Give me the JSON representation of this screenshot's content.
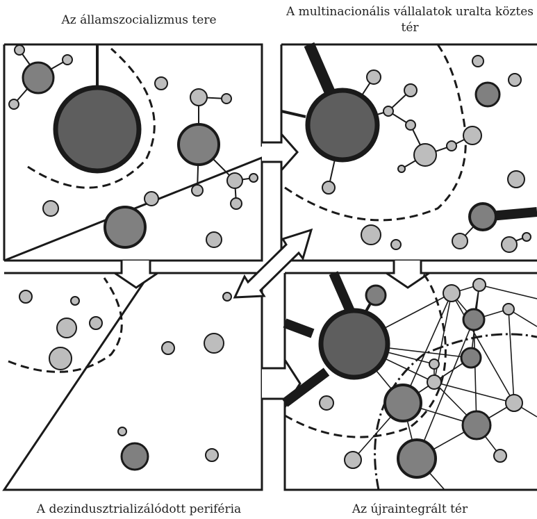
{
  "quadrants": {
    "top_left": {
      "caption": "Az államszocializmus tere"
    },
    "top_right": {
      "caption": "A multinacionális vállalatok uralta köztes tér"
    },
    "bottom_left": {
      "caption": "A dezindusztrializálódott periféria"
    },
    "bottom_right": {
      "caption": "Az újraintegrált tér"
    }
  },
  "colors": {
    "border": "#1a1a1a",
    "node_dark": "#5e5e5e",
    "node_mid": "#808080",
    "node_light": "#bdbdbd",
    "background": "#ffffff"
  }
}
